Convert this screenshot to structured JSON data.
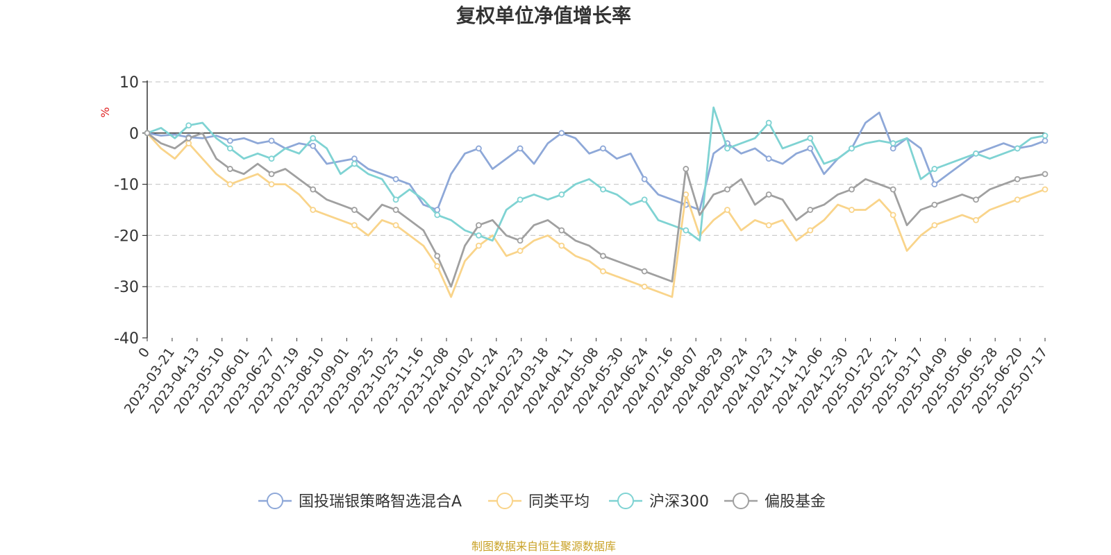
{
  "chart_data": {
    "type": "line",
    "title": "复权单位净值增长率",
    "ylabel": "%",
    "ylim": [
      -40,
      10
    ],
    "yticks": [
      "10",
      "0",
      "-10",
      "-20",
      "-30",
      "-40"
    ],
    "grid": true,
    "legend_position": "bottom",
    "source_note": "制图数据来自恒生聚源数据库",
    "x_labels": [
      "0",
      "2023-03-21",
      "2023-04-13",
      "2023-05-10",
      "2023-06-01",
      "2023-06-27",
      "2023-07-19",
      "2023-08-10",
      "2023-09-01",
      "2023-09-25",
      "2023-10-25",
      "2023-11-16",
      "2023-12-08",
      "2024-01-02",
      "2024-01-24",
      "2024-02-23",
      "2024-03-18",
      "2024-04-11",
      "2024-05-08",
      "2024-05-30",
      "2024-06-24",
      "2024-07-16",
      "2024-08-07",
      "2024-08-29",
      "2024-09-24",
      "2024-10-23",
      "2024-11-14",
      "2024-12-06",
      "2024-12-30",
      "2025-01-22",
      "2025-02-21",
      "2025-03-17",
      "2025-04-09",
      "2025-05-06",
      "2025-05-28",
      "2025-06-20",
      "2025-07-17"
    ],
    "series": [
      {
        "name": "国投瑞银策略智选混合A",
        "color": "#8ea8d8",
        "values": [
          0,
          -0.5,
          -0.3,
          -0.8,
          -1,
          -0.5,
          -1.5,
          -1,
          -2,
          -1.5,
          -3,
          -2,
          -2.5,
          -6,
          -5.5,
          -5,
          -7,
          -8,
          -9,
          -10,
          -14,
          -15,
          -8,
          -4,
          -3,
          -7,
          -5,
          -3,
          -6,
          -2,
          0,
          -1,
          -4,
          -3,
          -5,
          -4,
          -9,
          -12,
          -13,
          -14,
          -15,
          -4,
          -2,
          -4,
          -3,
          -5,
          -6,
          -4,
          -3,
          -8,
          -5,
          -3,
          2,
          4,
          -3,
          -1,
          -3,
          -10,
          -8,
          -6,
          -4,
          -3,
          -2,
          -3,
          -2.5,
          -1.5
        ]
      },
      {
        "name": "同类平均",
        "color": "#f9d48a",
        "values": [
          0,
          -3,
          -5,
          -2,
          -5,
          -8,
          -10,
          -9,
          -8,
          -10,
          -10,
          -12,
          -15,
          -16,
          -17,
          -18,
          -20,
          -17,
          -18,
          -20,
          -22,
          -26,
          -32,
          -25,
          -22,
          -20,
          -24,
          -23,
          -21,
          -20,
          -22,
          -24,
          -25,
          -27,
          -28,
          -29,
          -30,
          -31,
          -32,
          -12,
          -20,
          -17,
          -15,
          -19,
          -17,
          -18,
          -17,
          -21,
          -19,
          -17,
          -14,
          -15,
          -15,
          -13,
          -16,
          -23,
          -20,
          -18,
          -17,
          -16,
          -17,
          -15,
          -14,
          -13,
          -12,
          -11
        ]
      },
      {
        "name": "沪深300",
        "color": "#7fd3d3",
        "values": [
          0,
          1,
          -1,
          1.5,
          2,
          -1,
          -3,
          -5,
          -4,
          -5,
          -3,
          -4,
          -1,
          -3,
          -8,
          -6,
          -8,
          -9,
          -13,
          -11,
          -13,
          -16,
          -17,
          -19,
          -20,
          -21,
          -15,
          -13,
          -12,
          -13,
          -12,
          -10,
          -9,
          -11,
          -12,
          -14,
          -13,
          -17,
          -18,
          -19,
          -21,
          5,
          -3,
          -2,
          -1,
          2,
          -3,
          -2,
          -1,
          -6,
          -5,
          -3,
          -2,
          -1.5,
          -2,
          -1,
          -9,
          -7,
          -6,
          -5,
          -4,
          -5,
          -4,
          -3,
          -1,
          -0.5
        ]
      },
      {
        "name": "偏股基金",
        "color": "#a0a0a0",
        "values": [
          0,
          -2,
          -3,
          -1,
          0,
          -5,
          -7,
          -8,
          -6,
          -8,
          -7,
          -9,
          -11,
          -13,
          -14,
          -15,
          -17,
          -14,
          -15,
          -17,
          -19,
          -24,
          -30,
          -22,
          -18,
          -17,
          -20,
          -21,
          -18,
          -17,
          -19,
          -21,
          -22,
          -24,
          -25,
          -26,
          -27,
          -28,
          -29,
          -7,
          -16,
          -12,
          -11,
          -9,
          -14,
          -12,
          -13,
          -17,
          -15,
          -14,
          -12,
          -11,
          -9,
          -10,
          -11,
          -18,
          -15,
          -14,
          -13,
          -12,
          -13,
          -11,
          -10,
          -9,
          -8.5,
          -8
        ]
      }
    ]
  }
}
